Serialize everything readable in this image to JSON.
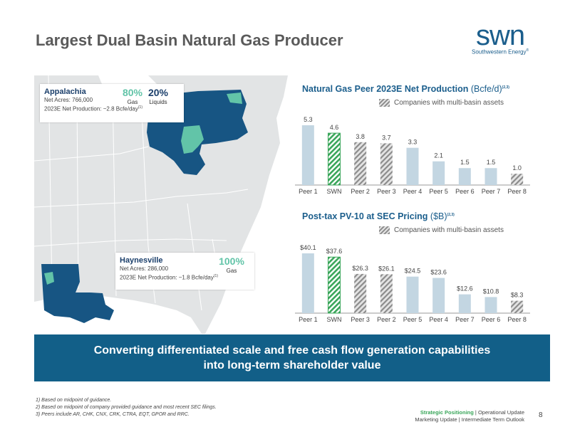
{
  "slide": {
    "title": "Largest Dual Basin Natural Gas Producer",
    "page_number": "8"
  },
  "logo": {
    "word": "swn",
    "subtitle": "Southwestern Energy",
    "trademark": "®"
  },
  "colors": {
    "navy": "#1b3f6b",
    "blue": "#125f88",
    "map_region": "#175583",
    "map_land": "#e2e4e5",
    "teal": "#62c4a8",
    "green": "#3aa65a",
    "bar": "#c3d6e2",
    "hatch": "#8c8c8c"
  },
  "appalachia": {
    "name": "Appalachia",
    "acres": "Net Acres: 766,000",
    "production": "2023E Net Production: ~2.8 Bcfe/day",
    "production_note": "(1)",
    "gas_pct": "80%",
    "gas_label": "Gas",
    "liquids_pct": "20%",
    "liquids_label": "Liquids"
  },
  "haynesville": {
    "name": "Haynesville",
    "acres": "Net Acres: 286,000",
    "production": "2023E Net Production: ~1.8 Bcfe/day",
    "production_note": "(1)",
    "gas_pct": "100%",
    "gas_label": "Gas"
  },
  "charts": {
    "production": {
      "title": "Natural Gas Peer 2023E Net Production",
      "unit": " (Bcfe/d)",
      "note": "(2,3)",
      "legend": "Companies with multi-basin assets"
    },
    "pv10": {
      "title": "Post-tax PV-10 at SEC Pricing",
      "unit": " ($B)",
      "note": "(2,3)",
      "legend": "Companies with multi-basin assets"
    }
  },
  "chart_data": [
    {
      "type": "bar",
      "title": "Natural Gas Peer 2023E Net Production (Bcfe/d)",
      "categories": [
        "Peer 1",
        "SWN",
        "Peer 2",
        "Peer 3",
        "Peer 4",
        "Peer 5",
        "Peer 6",
        "Peer 7",
        "Peer 8"
      ],
      "values": [
        5.3,
        4.6,
        3.8,
        3.7,
        3.3,
        2.1,
        1.5,
        1.5,
        1.0
      ],
      "labels": [
        "5.3",
        "4.6",
        "3.8",
        "3.7",
        "3.3",
        "2.1",
        "1.5",
        "1.5",
        "1.0"
      ],
      "styles": [
        "plain",
        "swn",
        "hatch",
        "hatch",
        "plain",
        "plain",
        "plain",
        "plain",
        "hatch"
      ],
      "ylim": [
        0,
        5.3
      ],
      "legend": "Companies with multi-basin assets",
      "grid": false
    },
    {
      "type": "bar",
      "title": "Post-tax PV-10 at SEC Pricing ($B)",
      "categories": [
        "Peer 1",
        "SWN",
        "Peer 3",
        "Peer 2",
        "Peer 5",
        "Peer 4",
        "Peer 7",
        "Peer 6",
        "Peer 8"
      ],
      "values": [
        40.1,
        37.6,
        26.3,
        26.1,
        24.5,
        23.6,
        12.6,
        10.8,
        8.3
      ],
      "labels": [
        "$40.1",
        "$37.6",
        "$26.3",
        "$26.1",
        "$24.5",
        "$23.6",
        "$12.6",
        "$10.8",
        "$8.3"
      ],
      "styles": [
        "plain",
        "swn",
        "hatch",
        "hatch",
        "plain",
        "plain",
        "plain",
        "plain",
        "hatch"
      ],
      "ylim": [
        0,
        40.1
      ],
      "legend": "Companies with multi-basin assets",
      "grid": false
    }
  ],
  "banner": {
    "line1": "Converting differentiated scale and free cash flow generation capabilities",
    "line2": "into long-term shareholder value"
  },
  "footnotes": [
    "1) Based on midpoint of guidance.",
    "2) Based on midpoint of company provided guidance and most recent SEC filings.",
    "3) Peers include AR, CHK, CNX, CRK, CTRA, EQT, GPOR and RRC."
  ],
  "nav": {
    "active": "Strategic Positioning",
    "sep": " | ",
    "item2": "Operational Update",
    "item3": "Marketing Update",
    "item4": "Intermediate Term Outlook"
  }
}
